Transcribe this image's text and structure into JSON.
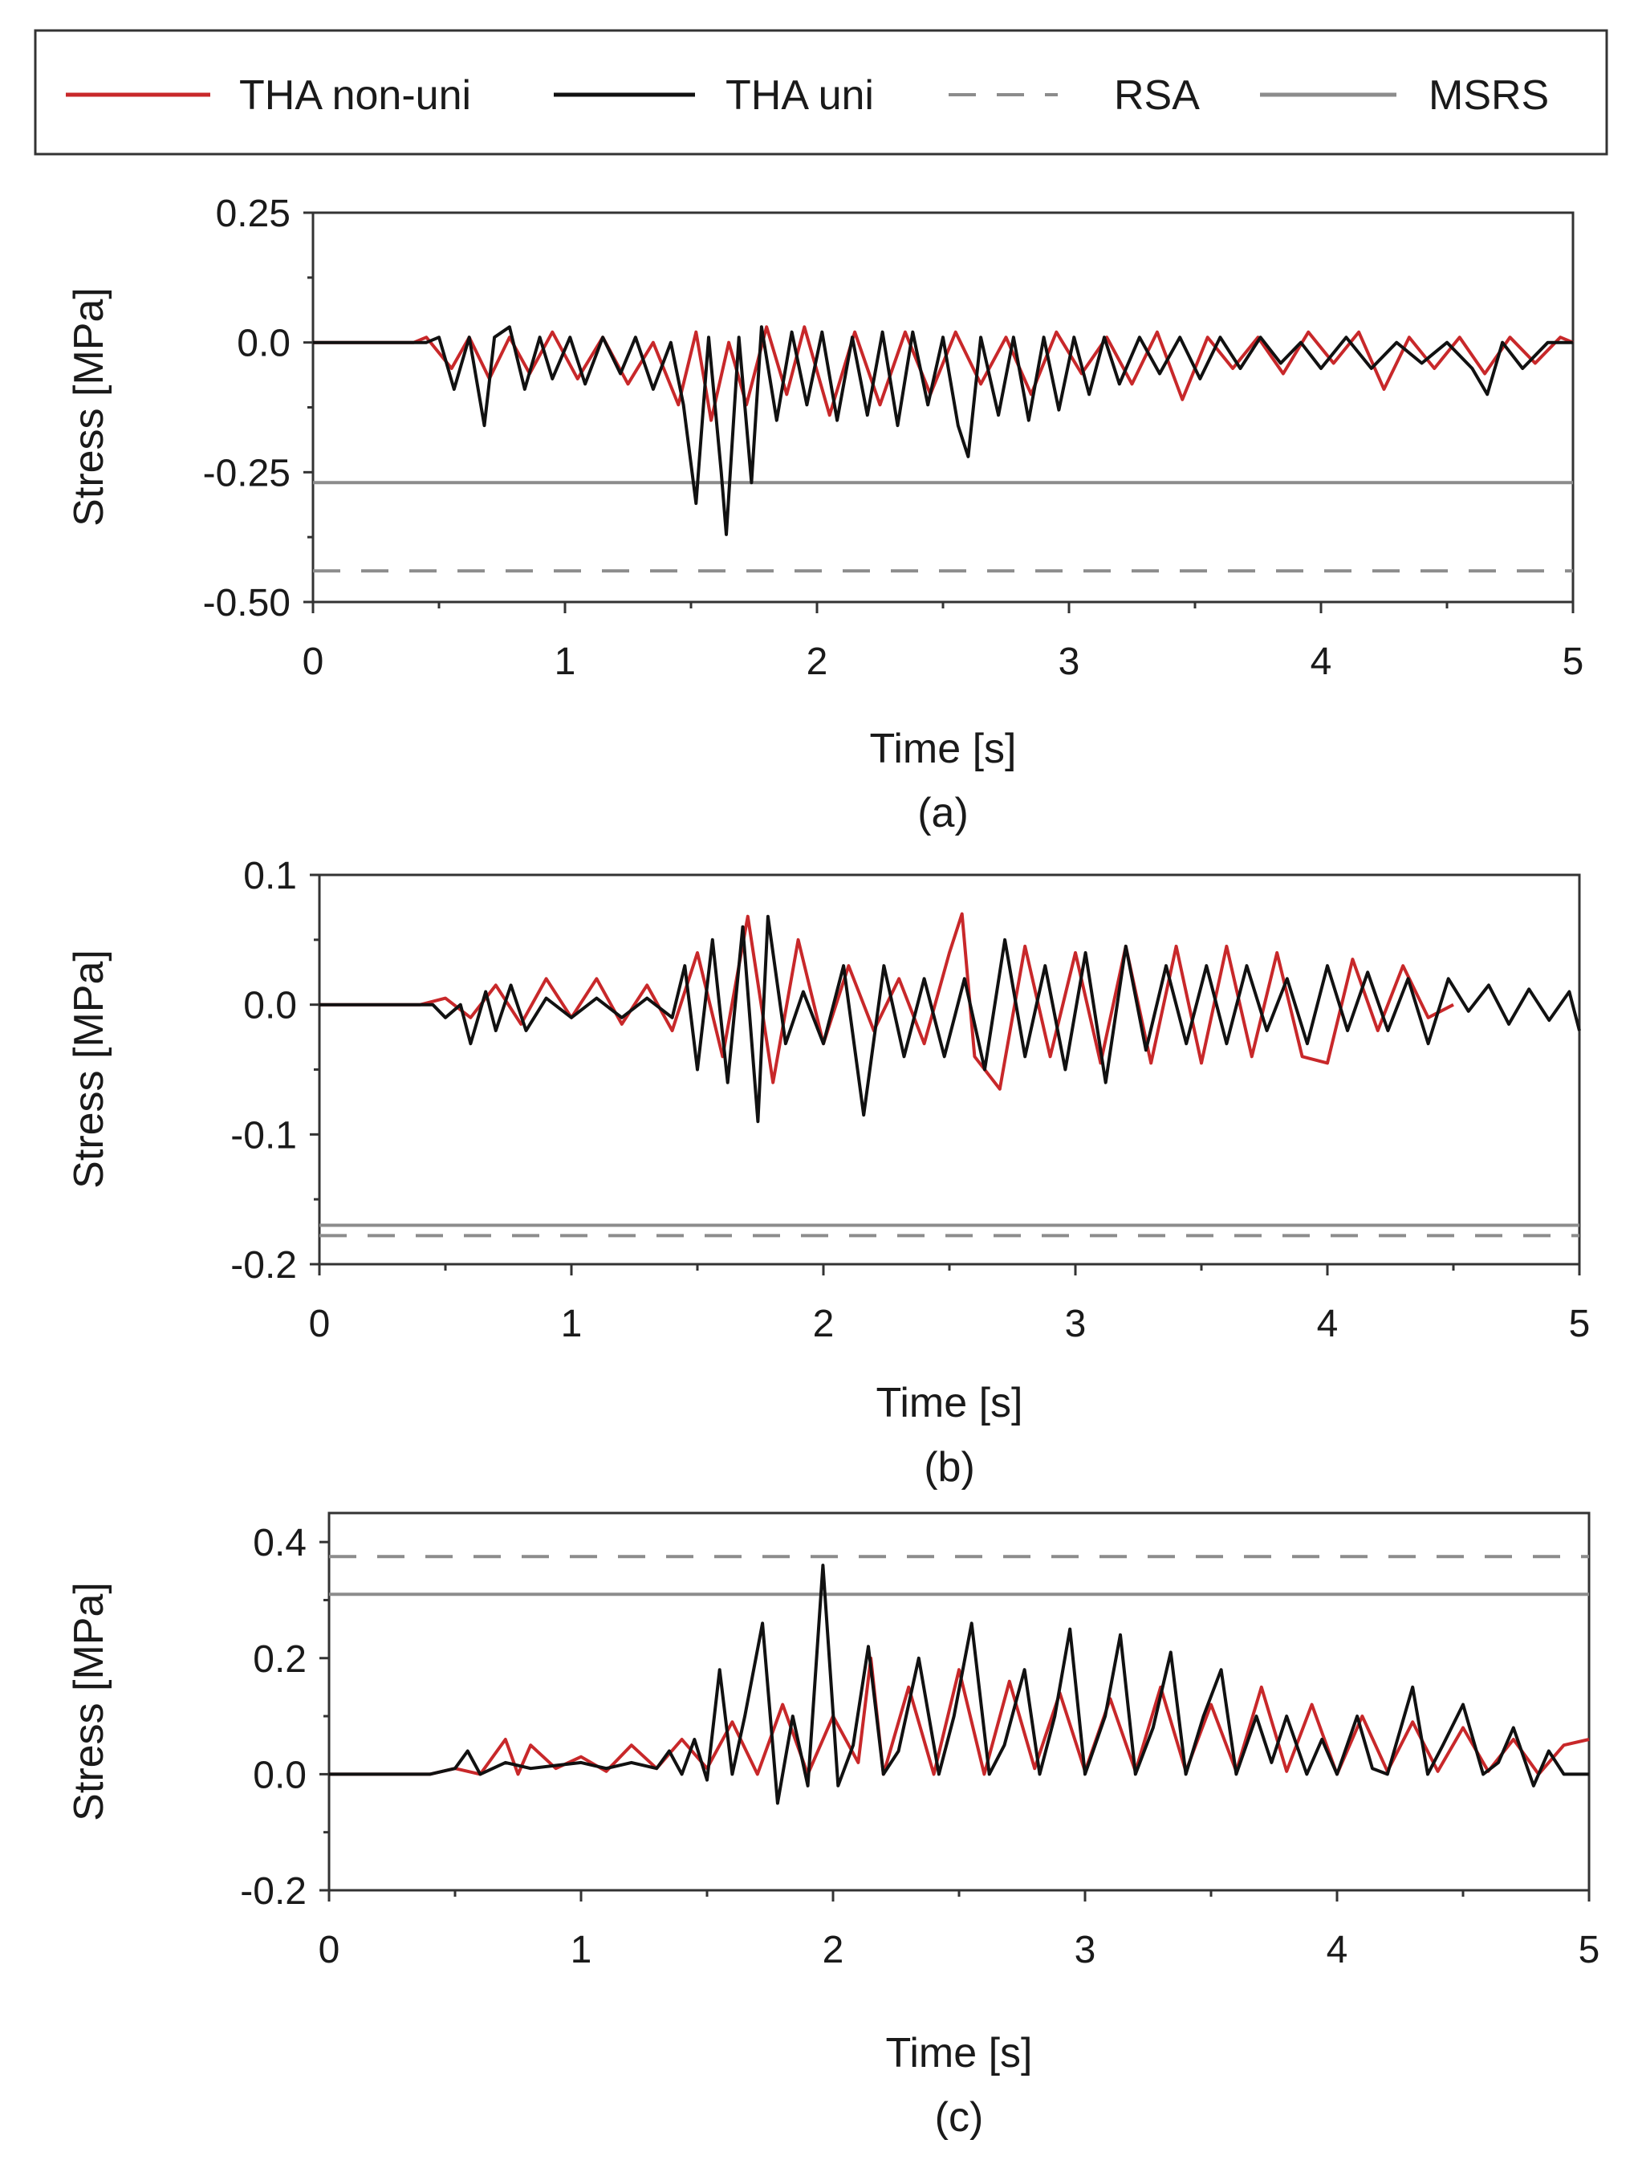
{
  "legend": {
    "items": [
      {
        "label": "THA non-uni",
        "color": "#c8282a",
        "style": "solid"
      },
      {
        "label": "THA uni",
        "color": "#111111",
        "style": "solid"
      },
      {
        "label": "RSA",
        "color": "#8c8c8c",
        "style": "dashed"
      },
      {
        "label": "MSRS",
        "color": "#8c8c8c",
        "style": "solid"
      }
    ]
  },
  "chart_data": [
    {
      "type": "line",
      "caption": "(a)",
      "xlabel": "Time [s]",
      "ylabel": "Stress [MPa]",
      "xlim": [
        0,
        5
      ],
      "ylim": [
        -0.5,
        0.25
      ],
      "xticks": [
        "0",
        "1",
        "2",
        "3",
        "4",
        "5"
      ],
      "yticks": [
        {
          "v": 0.25,
          "label": "0.25"
        },
        {
          "v": 0.0,
          "label": "0.0"
        },
        {
          "v": -0.25,
          "label": "-0.25"
        },
        {
          "v": -0.5,
          "label": "-0.50"
        }
      ],
      "hlines": {
        "RSA": -0.44,
        "MSRS": -0.27
      },
      "series": [
        {
          "name": "THA non-uni",
          "color": "#c8282a",
          "x": [
            0,
            0.4,
            0.45,
            0.55,
            0.62,
            0.7,
            0.78,
            0.86,
            0.95,
            1.05,
            1.15,
            1.25,
            1.35,
            1.45,
            1.52,
            1.58,
            1.65,
            1.72,
            1.8,
            1.88,
            1.95,
            2.05,
            2.15,
            2.25,
            2.35,
            2.45,
            2.55,
            2.65,
            2.75,
            2.85,
            2.95,
            3.05,
            3.15,
            3.25,
            3.35,
            3.45,
            3.55,
            3.65,
            3.75,
            3.85,
            3.95,
            4.05,
            4.15,
            4.25,
            4.35,
            4.45,
            4.55,
            4.65,
            4.75,
            4.85,
            4.95,
            5.0
          ],
          "y": [
            0,
            0,
            0.01,
            -0.05,
            0.01,
            -0.07,
            0.01,
            -0.06,
            0.02,
            -0.07,
            0.01,
            -0.08,
            0.0,
            -0.12,
            0.02,
            -0.15,
            0.0,
            -0.12,
            0.03,
            -0.1,
            0.03,
            -0.14,
            0.02,
            -0.12,
            0.02,
            -0.1,
            0.02,
            -0.08,
            0.01,
            -0.1,
            0.02,
            -0.06,
            0.01,
            -0.08,
            0.02,
            -0.11,
            0.01,
            -0.05,
            0.01,
            -0.06,
            0.02,
            -0.04,
            0.02,
            -0.09,
            0.01,
            -0.05,
            0.01,
            -0.06,
            0.01,
            -0.04,
            0.01,
            0.0
          ]
        },
        {
          "name": "THA uni",
          "color": "#111111",
          "x": [
            0,
            0.45,
            0.5,
            0.56,
            0.62,
            0.68,
            0.72,
            0.78,
            0.84,
            0.9,
            0.95,
            1.02,
            1.08,
            1.15,
            1.22,
            1.28,
            1.35,
            1.42,
            1.47,
            1.52,
            1.57,
            1.62,
            1.64,
            1.69,
            1.74,
            1.78,
            1.84,
            1.9,
            1.96,
            2.02,
            2.08,
            2.14,
            2.2,
            2.26,
            2.32,
            2.38,
            2.44,
            2.5,
            2.56,
            2.6,
            2.65,
            2.72,
            2.78,
            2.84,
            2.9,
            2.96,
            3.02,
            3.08,
            3.14,
            3.2,
            3.28,
            3.36,
            3.44,
            3.52,
            3.6,
            3.68,
            3.76,
            3.84,
            3.92,
            4.0,
            4.1,
            4.2,
            4.3,
            4.4,
            4.5,
            4.6,
            4.66,
            4.72,
            4.8,
            4.9,
            5.0
          ],
          "y": [
            0,
            0,
            0.01,
            -0.09,
            0.01,
            -0.16,
            0.01,
            0.03,
            -0.09,
            0.01,
            -0.07,
            0.01,
            -0.08,
            0.01,
            -0.06,
            0.01,
            -0.09,
            0.0,
            -0.12,
            -0.31,
            0.01,
            -0.25,
            -0.37,
            0.01,
            -0.27,
            0.03,
            -0.15,
            0.02,
            -0.12,
            0.02,
            -0.15,
            0.01,
            -0.14,
            0.02,
            -0.16,
            0.02,
            -0.12,
            0.01,
            -0.16,
            -0.22,
            0.01,
            -0.14,
            0.01,
            -0.15,
            0.01,
            -0.13,
            0.01,
            -0.1,
            0.01,
            -0.08,
            0.01,
            -0.06,
            0.01,
            -0.07,
            0.01,
            -0.05,
            0.01,
            -0.04,
            0.0,
            -0.05,
            0.01,
            -0.05,
            0.0,
            -0.04,
            0.0,
            -0.05,
            -0.1,
            0.0,
            -0.05,
            0.0,
            0.0
          ]
        }
      ]
    },
    {
      "type": "line",
      "caption": "(b)",
      "xlabel": "Time [s]",
      "ylabel": "Stress [MPa]",
      "xlim": [
        0,
        5
      ],
      "ylim": [
        -0.2,
        0.1
      ],
      "xticks": [
        "0",
        "1",
        "2",
        "3",
        "4",
        "5"
      ],
      "yticks": [
        {
          "v": 0.1,
          "label": "0.1"
        },
        {
          "v": 0.0,
          "label": "0.0"
        },
        {
          "v": -0.1,
          "label": "-0.1"
        },
        {
          "v": -0.2,
          "label": "-0.2"
        }
      ],
      "hlines": {
        "RSA": -0.178,
        "MSRS": -0.17
      },
      "series": [
        {
          "name": "THA non-uni",
          "color": "#c8282a",
          "x": [
            0,
            0.4,
            0.5,
            0.6,
            0.7,
            0.8,
            0.9,
            1.0,
            1.1,
            1.2,
            1.3,
            1.4,
            1.5,
            1.6,
            1.7,
            1.8,
            1.9,
            2.0,
            2.1,
            2.2,
            2.3,
            2.4,
            2.5,
            2.55,
            2.6,
            2.7,
            2.8,
            2.9,
            3.0,
            3.1,
            3.2,
            3.3,
            3.4,
            3.5,
            3.6,
            3.7,
            3.8,
            3.9,
            4.0,
            4.1,
            4.2,
            4.3,
            4.4,
            4.5
          ],
          "y": [
            0,
            0,
            0.005,
            -0.01,
            0.015,
            -0.015,
            0.02,
            -0.01,
            0.02,
            -0.015,
            0.015,
            -0.02,
            0.04,
            -0.04,
            0.068,
            -0.06,
            0.05,
            -0.03,
            0.03,
            -0.02,
            0.02,
            -0.03,
            0.04,
            0.07,
            -0.04,
            -0.065,
            0.045,
            -0.04,
            0.04,
            -0.045,
            0.045,
            -0.045,
            0.045,
            -0.045,
            0.045,
            -0.04,
            0.04,
            -0.04,
            -0.045,
            0.035,
            -0.02,
            0.03,
            -0.01,
            0.0
          ]
        },
        {
          "name": "THA uni",
          "color": "#111111",
          "x": [
            0,
            0.45,
            0.5,
            0.56,
            0.6,
            0.66,
            0.7,
            0.76,
            0.82,
            0.9,
            1.0,
            1.1,
            1.2,
            1.3,
            1.4,
            1.45,
            1.5,
            1.56,
            1.62,
            1.68,
            1.74,
            1.78,
            1.85,
            1.92,
            2.0,
            2.08,
            2.16,
            2.24,
            2.32,
            2.4,
            2.48,
            2.56,
            2.64,
            2.72,
            2.8,
            2.88,
            2.96,
            3.04,
            3.12,
            3.2,
            3.28,
            3.36,
            3.44,
            3.52,
            3.6,
            3.68,
            3.76,
            3.84,
            3.92,
            4.0,
            4.08,
            4.16,
            4.24,
            4.32,
            4.4,
            4.48,
            4.56,
            4.64,
            4.72,
            4.8,
            4.88,
            4.96,
            5.0
          ],
          "y": [
            0,
            0,
            -0.01,
            0.0,
            -0.03,
            0.01,
            -0.02,
            0.015,
            -0.02,
            0.005,
            -0.01,
            0.005,
            -0.01,
            0.005,
            -0.01,
            0.03,
            -0.05,
            0.05,
            -0.06,
            0.06,
            -0.09,
            0.068,
            -0.03,
            0.01,
            -0.03,
            0.03,
            -0.085,
            0.03,
            -0.04,
            0.02,
            -0.04,
            0.02,
            -0.05,
            0.05,
            -0.04,
            0.03,
            -0.05,
            0.04,
            -0.06,
            0.045,
            -0.035,
            0.03,
            -0.03,
            0.03,
            -0.03,
            0.03,
            -0.02,
            0.02,
            -0.03,
            0.03,
            -0.02,
            0.025,
            -0.02,
            0.02,
            -0.03,
            0.02,
            -0.005,
            0.015,
            -0.015,
            0.012,
            -0.012,
            0.01,
            -0.02
          ]
        }
      ]
    },
    {
      "type": "line",
      "caption": "(c)",
      "xlabel": "Time [s]",
      "ylabel": "Stress [MPa]",
      "xlim": [
        0,
        5
      ],
      "ylim": [
        -0.2,
        0.45
      ],
      "xticks": [
        "0",
        "1",
        "2",
        "3",
        "4",
        "5"
      ],
      "yticks": [
        {
          "v": 0.4,
          "label": "0.4"
        },
        {
          "v": 0.2,
          "label": "0.2"
        },
        {
          "v": 0.0,
          "label": "0.0"
        },
        {
          "v": -0.2,
          "label": "-0.2"
        }
      ],
      "hlines": {
        "RSA": 0.375,
        "MSRS": 0.31
      },
      "series": [
        {
          "name": "THA non-uni",
          "color": "#c8282a",
          "x": [
            0,
            0.4,
            0.5,
            0.6,
            0.7,
            0.75,
            0.8,
            0.9,
            1.0,
            1.1,
            1.2,
            1.3,
            1.4,
            1.5,
            1.6,
            1.7,
            1.8,
            1.9,
            2.0,
            2.1,
            2.15,
            2.2,
            2.3,
            2.4,
            2.5,
            2.6,
            2.7,
            2.8,
            2.9,
            3.0,
            3.1,
            3.2,
            3.3,
            3.4,
            3.5,
            3.6,
            3.7,
            3.8,
            3.9,
            4.0,
            4.1,
            4.2,
            4.3,
            4.4,
            4.5,
            4.6,
            4.7,
            4.8,
            4.9,
            5.0
          ],
          "y": [
            0,
            0,
            0.01,
            0.0,
            0.06,
            0.0,
            0.05,
            0.01,
            0.03,
            0.005,
            0.05,
            0.01,
            0.06,
            0.01,
            0.09,
            0.0,
            0.12,
            0.0,
            0.1,
            0.02,
            0.2,
            0.0,
            0.15,
            0.0,
            0.18,
            0.0,
            0.16,
            0.01,
            0.14,
            0.005,
            0.13,
            0.005,
            0.15,
            0.005,
            0.12,
            0.005,
            0.15,
            0.005,
            0.12,
            0.0,
            0.1,
            0.005,
            0.09,
            0.005,
            0.08,
            0.005,
            0.06,
            0.0,
            0.05,
            0.06
          ]
        },
        {
          "name": "THA uni",
          "color": "#111111",
          "x": [
            0,
            0.4,
            0.5,
            0.55,
            0.6,
            0.7,
            0.8,
            0.9,
            1.0,
            1.1,
            1.2,
            1.3,
            1.35,
            1.4,
            1.45,
            1.5,
            1.55,
            1.6,
            1.65,
            1.72,
            1.78,
            1.84,
            1.9,
            1.96,
            2.02,
            2.08,
            2.14,
            2.2,
            2.26,
            2.34,
            2.42,
            2.48,
            2.55,
            2.62,
            2.68,
            2.76,
            2.82,
            2.88,
            2.94,
            3.0,
            3.08,
            3.14,
            3.2,
            3.27,
            3.34,
            3.4,
            3.47,
            3.54,
            3.6,
            3.68,
            3.74,
            3.8,
            3.88,
            3.94,
            4.0,
            4.08,
            4.14,
            4.2,
            4.3,
            4.36,
            4.42,
            4.5,
            4.58,
            4.64,
            4.7,
            4.78,
            4.84,
            4.9,
            5.0
          ],
          "y": [
            0,
            0,
            0.01,
            0.04,
            0.0,
            0.02,
            0.01,
            0.015,
            0.02,
            0.01,
            0.02,
            0.01,
            0.04,
            0.0,
            0.06,
            -0.01,
            0.18,
            0.0,
            0.1,
            0.26,
            -0.05,
            0.1,
            -0.02,
            0.36,
            -0.02,
            0.05,
            0.22,
            0.0,
            0.04,
            0.2,
            0.0,
            0.1,
            0.26,
            0.0,
            0.05,
            0.18,
            0.0,
            0.1,
            0.25,
            0.0,
            0.1,
            0.24,
            0.0,
            0.08,
            0.21,
            0.0,
            0.1,
            0.18,
            0.0,
            0.1,
            0.02,
            0.1,
            0.0,
            0.06,
            0.0,
            0.1,
            0.01,
            0.0,
            0.15,
            0.0,
            0.05,
            0.12,
            0.0,
            0.02,
            0.08,
            -0.02,
            0.04,
            0.0,
            0.0
          ]
        }
      ]
    }
  ]
}
